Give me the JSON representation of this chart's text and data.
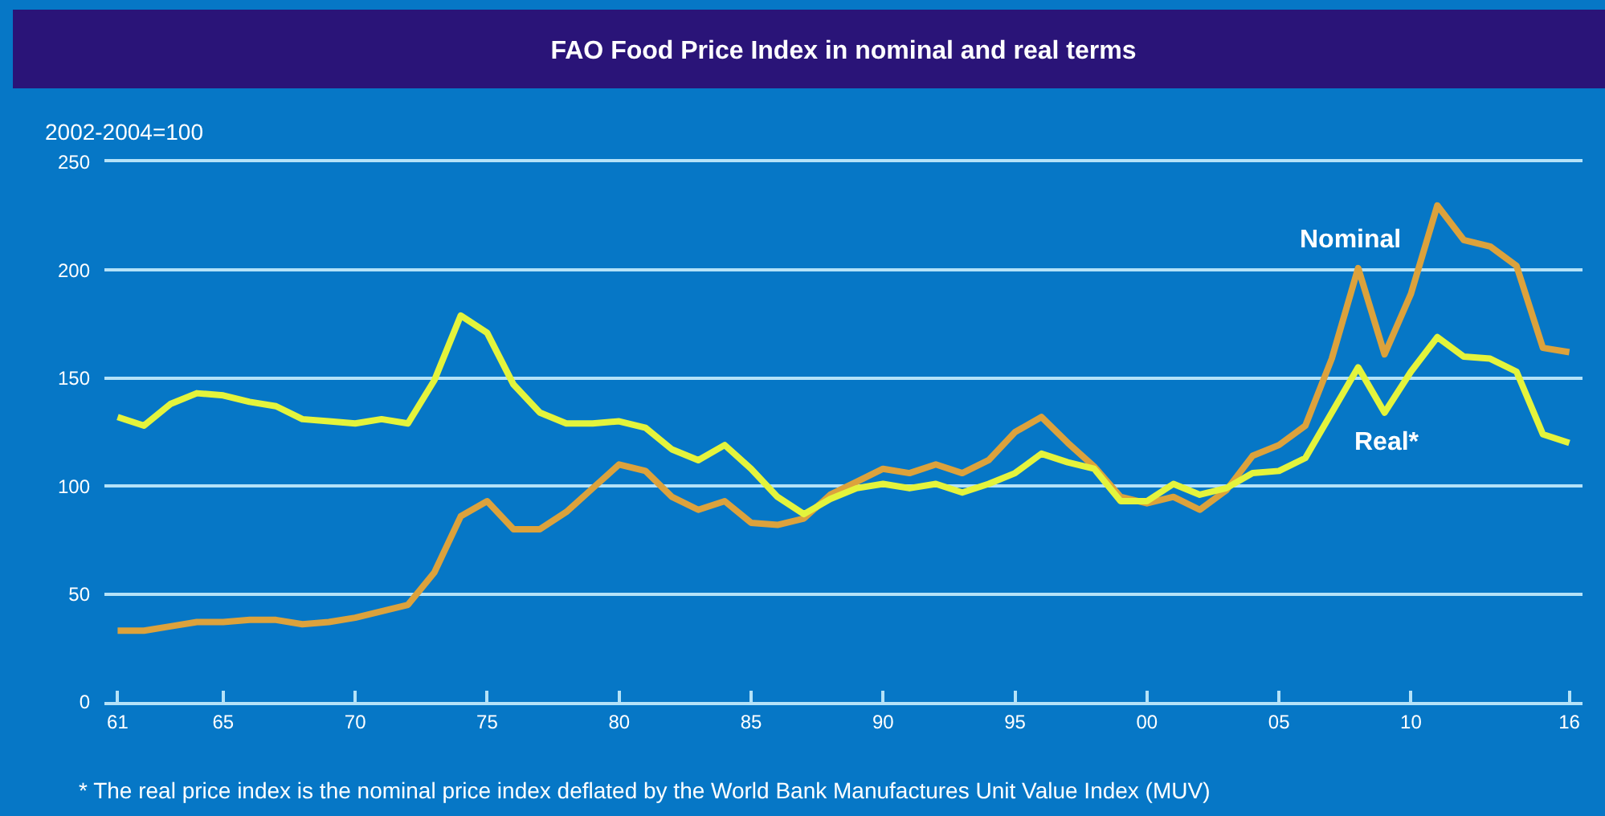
{
  "chart_data": {
    "type": "line",
    "title": "FAO Food Price Index in nominal and real terms",
    "ylabel": "2002-2004=100",
    "annotations": [
      "* The real price index is the nominal price index deflated by the World Bank Manufactures Unit Value Index (MUV)"
    ],
    "x": [
      1961,
      1962,
      1963,
      1964,
      1965,
      1966,
      1967,
      1968,
      1969,
      1970,
      1971,
      1972,
      1973,
      1974,
      1975,
      1976,
      1977,
      1978,
      1979,
      1980,
      1981,
      1982,
      1983,
      1984,
      1985,
      1986,
      1987,
      1988,
      1989,
      1990,
      1991,
      1992,
      1993,
      1994,
      1995,
      1996,
      1997,
      1998,
      1999,
      2000,
      2001,
      2002,
      2003,
      2004,
      2005,
      2006,
      2007,
      2008,
      2009,
      2010,
      2011,
      2012,
      2013,
      2014,
      2015,
      2016
    ],
    "series": [
      {
        "name": "Nominal",
        "color": "#dca23c",
        "values": [
          33,
          33,
          35,
          37,
          37,
          38,
          38,
          36,
          37,
          39,
          42,
          45,
          60,
          86,
          93,
          80,
          80,
          88,
          99,
          110,
          107,
          95,
          89,
          93,
          83,
          82,
          85,
          96,
          102,
          108,
          106,
          110,
          106,
          112,
          125,
          132,
          120,
          109,
          95,
          92,
          95,
          89,
          98,
          114,
          119,
          128,
          159,
          201,
          161,
          189,
          230,
          214,
          211,
          202,
          164,
          162
        ]
      },
      {
        "name": "Real*",
        "color": "#e4f43c",
        "values": [
          132,
          128,
          138,
          143,
          142,
          139,
          137,
          131,
          130,
          129,
          131,
          129,
          149,
          179,
          171,
          147,
          134,
          129,
          129,
          130,
          127,
          117,
          112,
          119,
          108,
          95,
          87,
          94,
          99,
          101,
          99,
          101,
          97,
          101,
          106,
          115,
          111,
          108,
          93,
          93,
          101,
          96,
          99,
          106,
          107,
          113,
          134,
          155,
          134,
          153,
          169,
          160,
          159,
          153,
          124,
          120
        ]
      }
    ],
    "xlim": [
      1960.5,
      2016.5
    ],
    "xticks": [
      {
        "value": 1961,
        "label": "61"
      },
      {
        "value": 1965,
        "label": "65"
      },
      {
        "value": 1970,
        "label": "70"
      },
      {
        "value": 1975,
        "label": "75"
      },
      {
        "value": 1980,
        "label": "80"
      },
      {
        "value": 1985,
        "label": "85"
      },
      {
        "value": 1990,
        "label": "90"
      },
      {
        "value": 1995,
        "label": "95"
      },
      {
        "value": 2000,
        "label": "00"
      },
      {
        "value": 2005,
        "label": "05"
      },
      {
        "value": 2010,
        "label": "10"
      },
      {
        "value": 2016,
        "label": "16"
      }
    ],
    "ylim": [
      0,
      250
    ],
    "yticks": [
      0,
      50,
      100,
      150,
      200,
      250
    ],
    "grid": "y",
    "legend": false
  }
}
